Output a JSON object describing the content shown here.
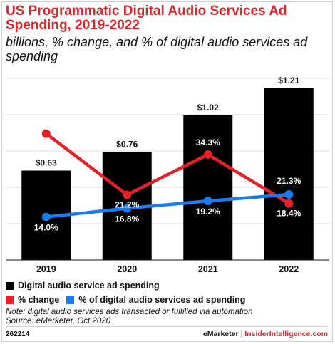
{
  "chart_data": {
    "type": "bar",
    "title": "US Programmatic Digital Audio Services Ad Spending, 2019-2022",
    "subtitle": "billions, % change, and % of digital audio services ad spending",
    "categories": [
      "2019",
      "2020",
      "2021",
      "2022"
    ],
    "ylim": [
      0,
      1.3
    ],
    "pct_ylim": [
      0,
      60
    ],
    "series": [
      {
        "name": "Digital audio service ad spending",
        "type": "bar",
        "values": [
          0.63,
          0.76,
          1.02,
          1.21
        ],
        "labels": [
          "$0.63",
          "$0.76",
          "$1.02",
          "$1.21"
        ],
        "color": "#000000"
      },
      {
        "name": "% change",
        "type": "line",
        "values": [
          41.1,
          21.2,
          34.3,
          18.4
        ],
        "labels": [
          "41.1%",
          "21.2%",
          "34.3%",
          "18.4%"
        ],
        "color": "#e32127"
      },
      {
        "name": "% of digital audio services ad spending",
        "type": "line",
        "values": [
          14.0,
          16.8,
          19.2,
          21.3
        ],
        "labels": [
          "14.0%",
          "16.8%",
          "19.2%",
          "21.3%"
        ],
        "color": "#1a7cf5"
      }
    ],
    "grid": true,
    "legend_position": "bottom-left"
  },
  "note": "Note: digital audio services ads transacted or fulfilled via automation",
  "source": "Source: eMarketer, Oct 2020",
  "chart_id": "262214",
  "brand": {
    "emarketer": "eMarketer",
    "separator": "|",
    "insider": "InsiderIntelligence.com"
  }
}
